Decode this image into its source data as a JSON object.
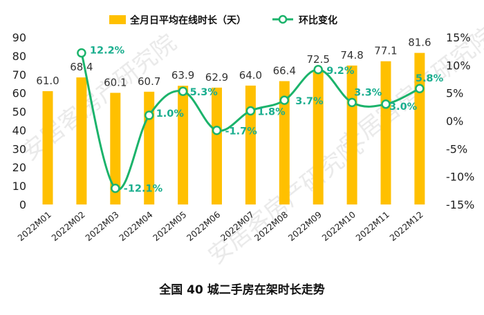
{
  "chart_data": {
    "type": "bar",
    "title": "全国 40 城二手房在架时长走势",
    "categories": [
      "2022M01",
      "2022M02",
      "2022M03",
      "2022M04",
      "2022M05",
      "2022M06",
      "2022M07",
      "2022M08",
      "2022M09",
      "2022M10",
      "2022M11",
      "2022M12"
    ],
    "series": [
      {
        "name": "全月日平均在线时长（天）",
        "type": "bar",
        "axis": "left",
        "values": [
          61.0,
          68.4,
          60.1,
          60.7,
          63.9,
          62.9,
          64.0,
          66.4,
          72.5,
          74.8,
          77.1,
          81.6
        ],
        "labels": [
          "61.0",
          "68.4",
          "60.1",
          "60.7",
          "63.9",
          "62.9",
          "64.0",
          "66.4",
          "72.5",
          "74.8",
          "77.1",
          "81.6"
        ],
        "color": "#FFC000"
      },
      {
        "name": "环比变化",
        "type": "line",
        "axis": "right",
        "values": [
          null,
          12.2,
          -12.1,
          1.0,
          5.3,
          -1.7,
          1.8,
          3.7,
          9.2,
          3.3,
          3.0,
          5.8
        ],
        "labels": [
          "",
          "12.2%",
          "-12.1%",
          "1.0%",
          "5.3%",
          "-1.7%",
          "1.8%",
          "3.7%",
          "9.2%",
          "3.3%",
          "3.0%",
          "5.8%"
        ],
        "color": "#1BB36B",
        "label_color": "#1AAE8E"
      }
    ],
    "left_axis": {
      "min": 0,
      "max": 90,
      "step": 10,
      "ticks": [
        "0",
        "10",
        "20",
        "30",
        "40",
        "50",
        "60",
        "70",
        "80",
        "90"
      ]
    },
    "right_axis": {
      "min": -15,
      "max": 15,
      "step": 5,
      "ticks": [
        "-15%",
        "-10%",
        "-5%",
        "0%",
        "5%",
        "10%",
        "15%"
      ]
    },
    "legend_position": "top",
    "grid": false,
    "watermark": "安居客房产研究院"
  }
}
